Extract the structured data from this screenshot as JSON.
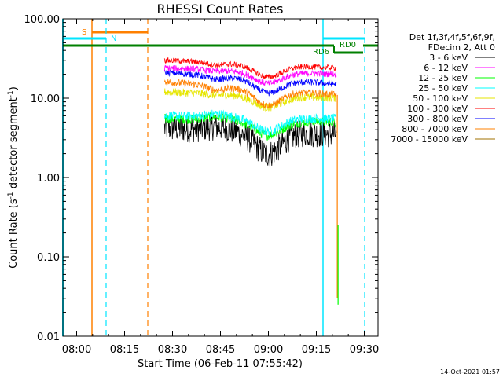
{
  "chart_data": {
    "type": "line",
    "title": "RHESSI Count Rates",
    "xlabel": "Start Time (06-Feb-11 07:55:42)",
    "ylabel_main": "Count Rate (s",
    "ylabel_sup": "-1",
    "ylabel_rest": " detector segment",
    "ylabel_sup2": "-1",
    "ylabel_end": ")",
    "y_scale": "log",
    "ylim": [
      0.01,
      100
    ],
    "xlim_minutes": [
      475.7,
      574.3
    ],
    "x_ticks": [
      {
        "minute": 480,
        "label": "08:00"
      },
      {
        "minute": 495,
        "label": "08:15"
      },
      {
        "minute": 510,
        "label": "08:30"
      },
      {
        "minute": 525,
        "label": "08:45"
      },
      {
        "minute": 540,
        "label": "09:00"
      },
      {
        "minute": 555,
        "label": "09:15"
      },
      {
        "minute": 570,
        "label": "09:30"
      }
    ],
    "y_ticks": [
      {
        "value": 100,
        "label": "100.00"
      },
      {
        "value": 10,
        "label": "10.00"
      },
      {
        "value": 1,
        "label": "1.00"
      },
      {
        "value": 0.1,
        "label": "0.10"
      },
      {
        "value": 0.01,
        "label": "0.01"
      }
    ],
    "legend": {
      "placement": "right",
      "header": [
        "Det 1f,3f,4f,5f,6f,9f,",
        "FDecim 2, Att 0"
      ]
    },
    "data_start_minute": 507.5,
    "data_end_minute": 561.3,
    "series": [
      {
        "name": "3 - 6 keV",
        "color": "#000000",
        "start": 4.2,
        "end": 3.5,
        "mid_dip": 2.2,
        "hump": 4.6,
        "noise": 0.35
      },
      {
        "name": "6 - 12 keV",
        "color": "#ff00ff",
        "start": 24,
        "end": 20,
        "mid_dip": 17,
        "hump": 23,
        "noise": 0.08
      },
      {
        "name": "12 - 25 keV",
        "color": "#00ff00",
        "start": 5.5,
        "end": 5.0,
        "mid_dip": 3.6,
        "hump": 6.0,
        "noise": 0.12
      },
      {
        "name": "25 - 50 keV",
        "color": "#00ffff",
        "start": 6.0,
        "end": 5.5,
        "mid_dip": 4.0,
        "hump": 6.5,
        "noise": 0.12
      },
      {
        "name": "50 - 100 keV",
        "color": "#e6e600",
        "start": 12,
        "end": 10,
        "mid_dip": 8.5,
        "hump": 11.5,
        "noise": 0.1
      },
      {
        "name": "100 - 300 keV",
        "color": "#ff0000",
        "start": 30,
        "end": 24,
        "mid_dip": 21,
        "hump": 28,
        "noise": 0.07
      },
      {
        "name": "300 - 800 keV",
        "color": "#0000ff",
        "start": 21,
        "end": 15,
        "mid_dip": 14,
        "hump": 19,
        "noise": 0.08
      },
      {
        "name": "800 - 7000 keV",
        "color": "#ff8000",
        "start": 16,
        "end": 11,
        "mid_dip": 10,
        "hump": 14,
        "noise": 0.09
      },
      {
        "name": "7000 - 15000 keV",
        "color": "#a07000",
        "start": 0,
        "end": 0,
        "mid_dip": 0,
        "hump": 0,
        "noise": 0
      }
    ],
    "annotations": {
      "s_label": "S",
      "n_label": "N",
      "rd6_label": "RD6",
      "rd0_label": "RD0"
    },
    "footer_date": "14-Oct-2021 01:57"
  }
}
